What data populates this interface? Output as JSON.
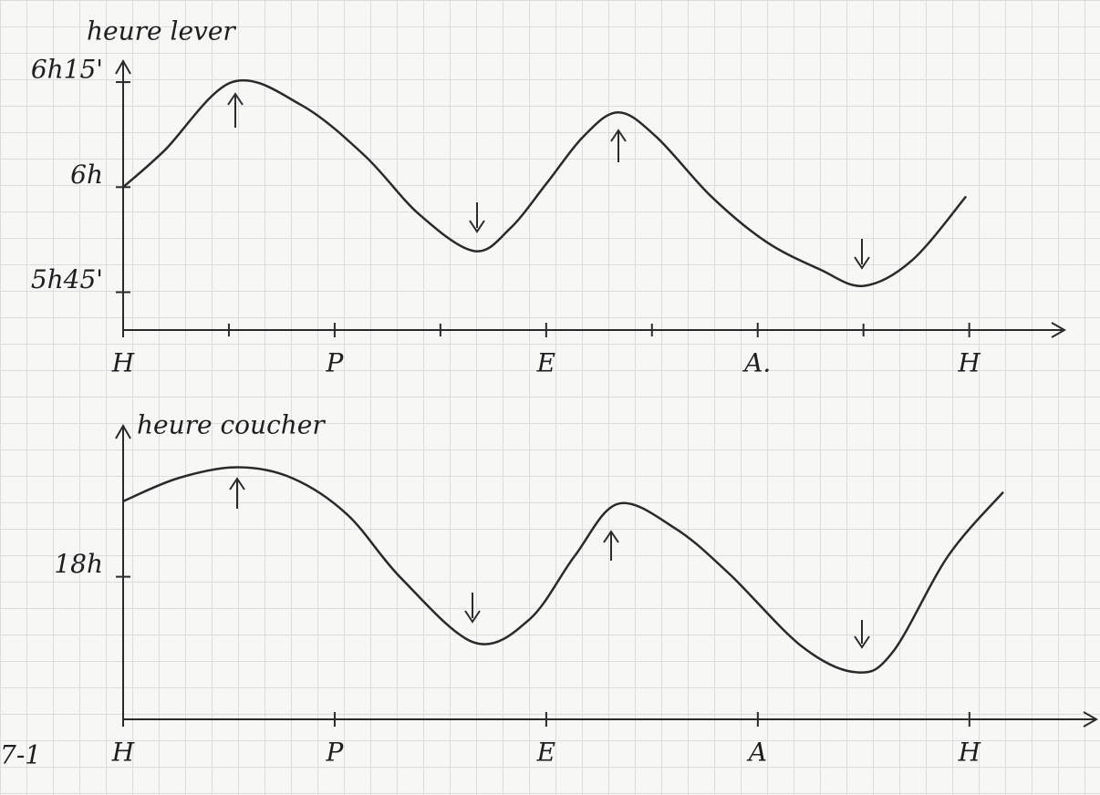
{
  "figure_label": "7-1",
  "chart_data": [
    {
      "type": "line",
      "title": "heure lever",
      "color": "#2a2a2a",
      "x": [
        0,
        0.39,
        1.03,
        1.68,
        2.28,
        2.8,
        3.32,
        3.66,
        4.01,
        4.35,
        4.68,
        5.04,
        5.56,
        6.08,
        6.59,
        7.0,
        7.46,
        7.97
      ],
      "values": [
        6.0,
        6.087,
        6.25,
        6.196,
        6.076,
        5.935,
        5.848,
        5.902,
        6.011,
        6.12,
        6.178,
        6.12,
        5.978,
        5.87,
        5.804,
        5.765,
        5.826,
        5.978
      ],
      "xlim": [
        0,
        8.9
      ],
      "xticks": [
        {
          "value": 0,
          "label": "H"
        },
        {
          "value": 2,
          "label": "P"
        },
        {
          "value": 4,
          "label": "E"
        },
        {
          "value": 6,
          "label": "A."
        },
        {
          "value": 8,
          "label": "H"
        }
      ],
      "minor_xticks": [
        1,
        3,
        5,
        7
      ],
      "ylim": [
        5.66,
        6.3
      ],
      "yticks": [
        {
          "value": 6.25,
          "label": "6h15'"
        },
        {
          "value": 6,
          "label": "6h"
        },
        {
          "value": 5.75,
          "label": "5h45'"
        }
      ]
    },
    {
      "type": "line",
      "title": "heure coucher",
      "color": "#2a2a2a",
      "x": [
        0,
        0.52,
        1.08,
        1.6,
        2.12,
        2.63,
        3.32,
        3.84,
        4.27,
        4.68,
        5.22,
        5.73,
        6.42,
        6.94,
        7.28,
        7.8,
        8.32
      ],
      "values": [
        18.18,
        18.235,
        18.261,
        18.235,
        18.148,
        17.996,
        17.843,
        17.898,
        18.05,
        18.174,
        18.115,
        18.007,
        17.833,
        17.772,
        17.822,
        18.05,
        18.202
      ],
      "xlim": [
        0,
        9.2
      ],
      "xticks": [
        {
          "value": 0,
          "label": "H"
        },
        {
          "value": 2,
          "label": "P"
        },
        {
          "value": 4,
          "label": "E"
        },
        {
          "value": 6,
          "label": "A"
        },
        {
          "value": 8,
          "label": "H"
        }
      ],
      "ylim": [
        17.66,
        18.36
      ],
      "yticks": [
        {
          "value": 18,
          "label": "18h"
        }
      ]
    }
  ]
}
